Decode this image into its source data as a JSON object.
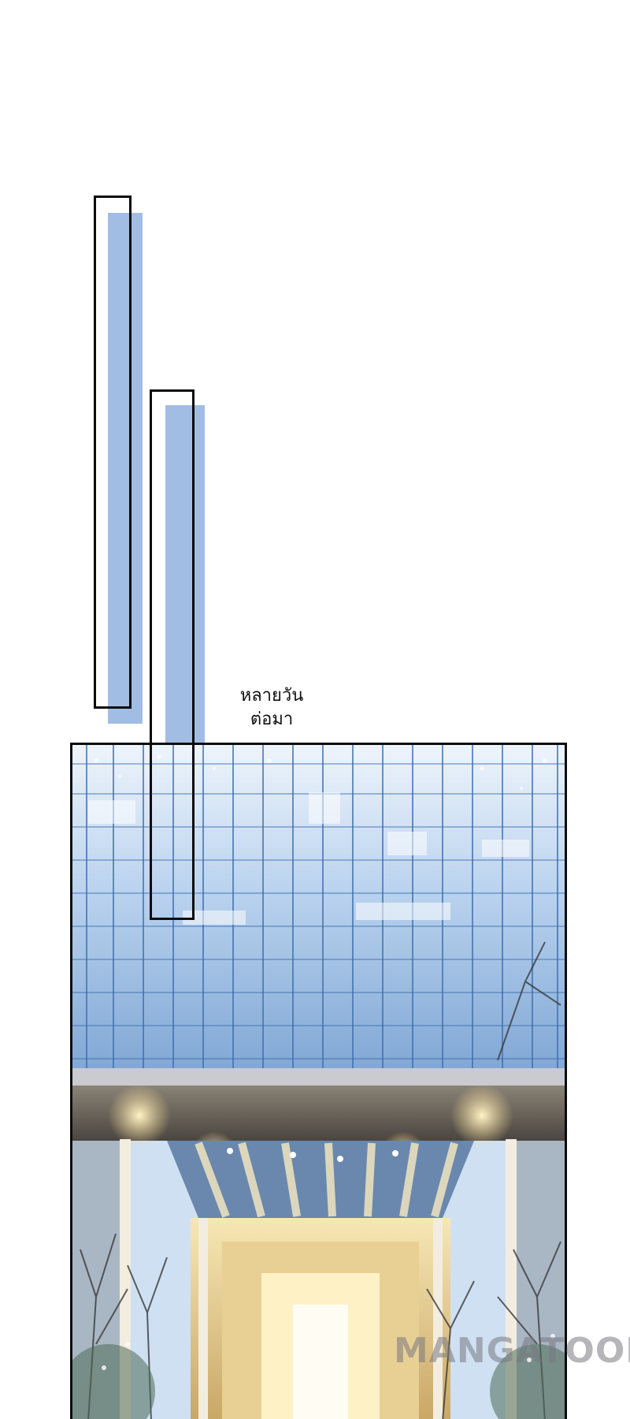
{
  "caption": {
    "line1": "หลายวัน",
    "line2": "ต่อมา"
  },
  "watermark": "MANGATOON",
  "illustration": {
    "subject": "building-entrance-icon"
  },
  "colors": {
    "accent_blue": "#9db9e2",
    "frame": "#0b0b0b",
    "sky_glass": "#cfe0f3",
    "warm_light": "#f4d58a"
  }
}
